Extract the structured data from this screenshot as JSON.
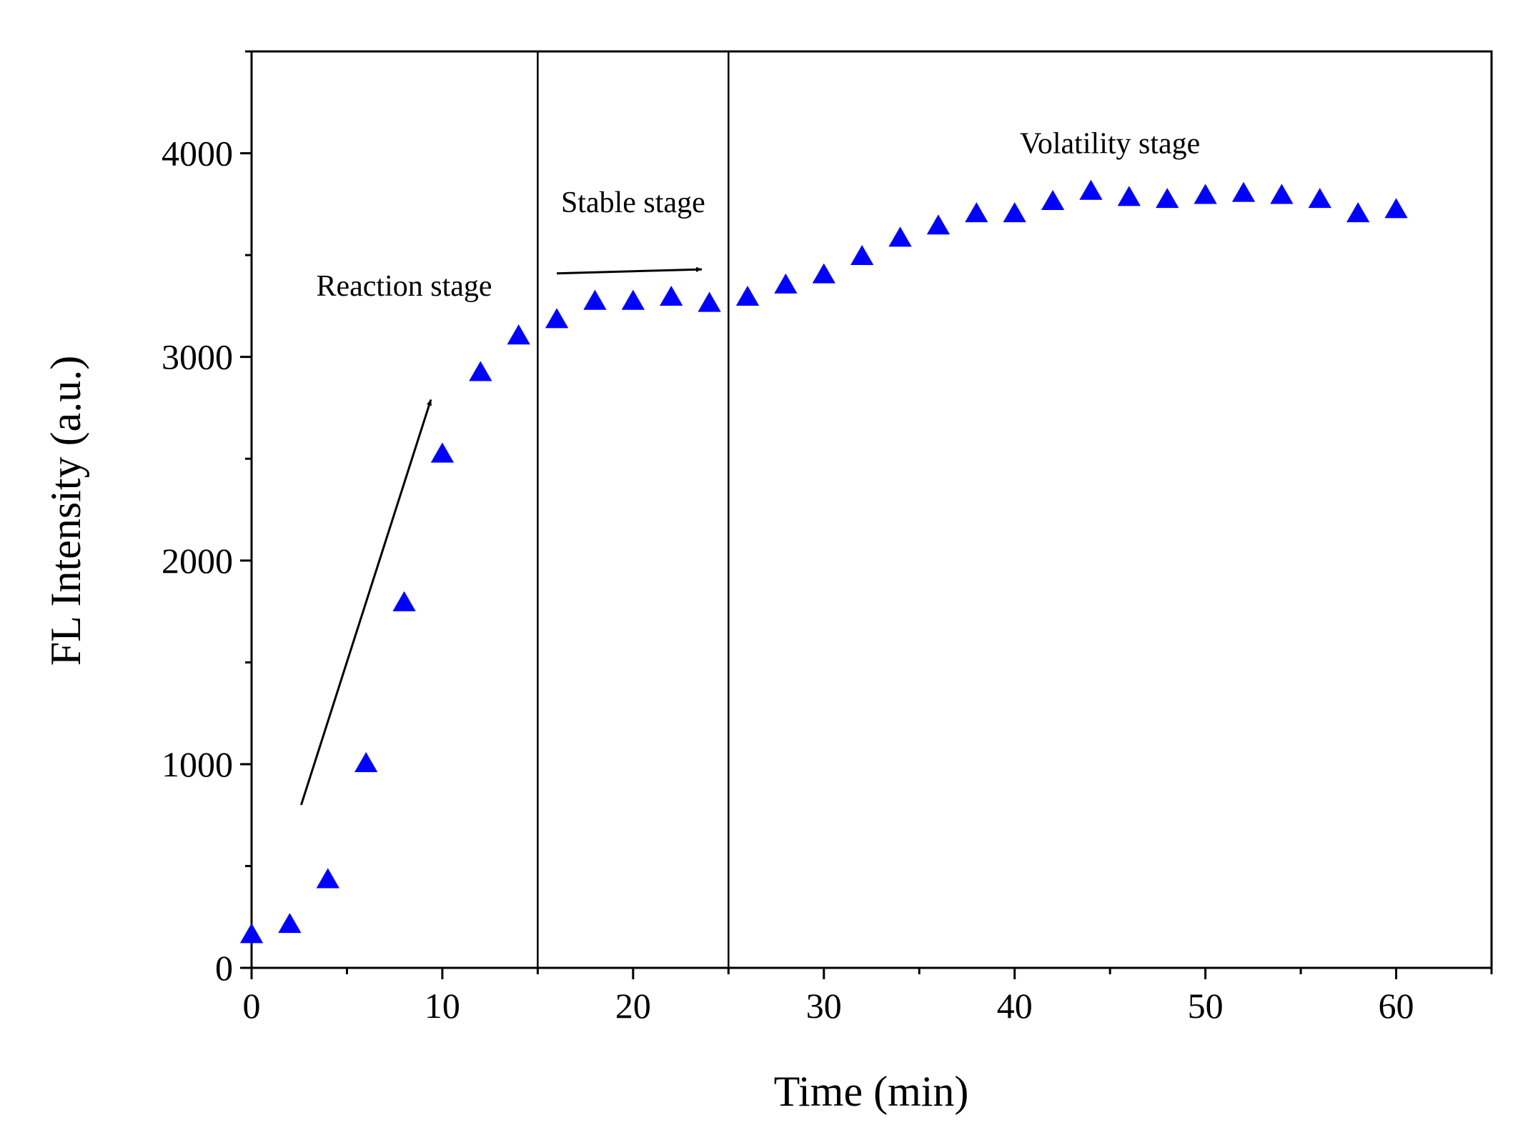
{
  "chart_data": {
    "type": "scatter",
    "title": "",
    "xlabel": "Time (min)",
    "ylabel": "FL Intensity (a.u.)",
    "xlim": [
      0,
      65
    ],
    "ylim": [
      0,
      4500
    ],
    "xticks": [
      0,
      10,
      20,
      30,
      40,
      50,
      60
    ],
    "yticks": [
      0,
      1000,
      2000,
      3000,
      4000
    ],
    "grid": false,
    "marker": "triangle",
    "marker_color": "#0000ff",
    "series": [
      {
        "name": "FL Intensity",
        "x": [
          0,
          2,
          4,
          6,
          8,
          10,
          12,
          14,
          16,
          18,
          20,
          22,
          24,
          26,
          28,
          30,
          32,
          34,
          36,
          38,
          40,
          42,
          44,
          46,
          48,
          50,
          52,
          54,
          56,
          58,
          60
        ],
        "y": [
          160,
          210,
          430,
          1000,
          1790,
          2520,
          2920,
          3100,
          3180,
          3270,
          3270,
          3290,
          3260,
          3290,
          3350,
          3400,
          3490,
          3580,
          3640,
          3700,
          3700,
          3760,
          3810,
          3780,
          3770,
          3790,
          3800,
          3790,
          3770,
          3700,
          3720
        ]
      }
    ],
    "vertical_lines": [
      15,
      25
    ],
    "annotations": [
      {
        "text": "Reaction stage",
        "x": 8,
        "y": 3300
      },
      {
        "text": "Stable stage",
        "x": 20,
        "y": 3710
      },
      {
        "text": "Volatility stage",
        "x": 45,
        "y": 4000
      }
    ],
    "arrows": [
      {
        "from": [
          2.6,
          800
        ],
        "to": [
          9.4,
          2790
        ]
      },
      {
        "from": [
          16,
          3410
        ],
        "to": [
          23.6,
          3430
        ]
      }
    ]
  }
}
